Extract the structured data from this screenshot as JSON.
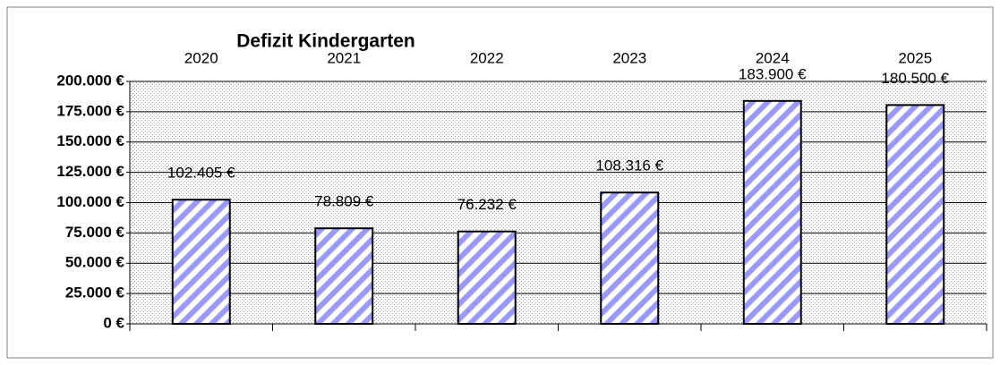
{
  "chart_data": {
    "type": "bar",
    "title": "Defizit Kindergarten",
    "categories": [
      "2020",
      "2021",
      "2022",
      "2023",
      "2024",
      "2025"
    ],
    "values": [
      102405,
      78809,
      76232,
      108316,
      183900,
      180500
    ],
    "value_labels": [
      "102.405 €",
      "78.809 €",
      "76.232 €",
      "108.316 €",
      "183.900 €",
      "180.500 €"
    ],
    "color": "#9999ff",
    "ylim": [
      0,
      200000
    ],
    "yticks": [
      {
        "value": 0,
        "label": "0 €"
      },
      {
        "value": 25000,
        "label": "25.000 €"
      },
      {
        "value": 50000,
        "label": "50.000 €"
      },
      {
        "value": 75000,
        "label": "75.000 €"
      },
      {
        "value": 100000,
        "label": "100.000 €"
      },
      {
        "value": 125000,
        "label": "125.000 €"
      },
      {
        "value": 150000,
        "label": "150.000 €"
      },
      {
        "value": 175000,
        "label": "175.000 €"
      },
      {
        "value": 200000,
        "label": "200.000 €"
      }
    ],
    "grid": true
  }
}
